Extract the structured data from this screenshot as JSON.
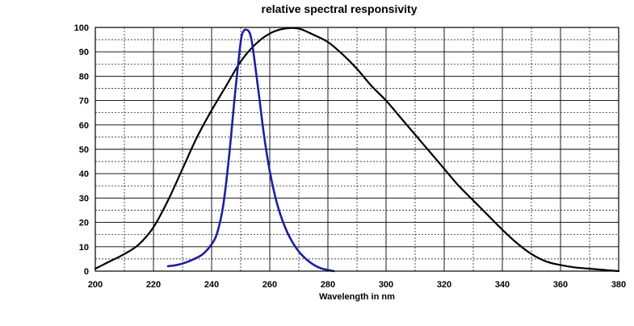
{
  "chart_data": {
    "type": "line",
    "title": "relative spectral responsivity",
    "xlabel": "Wavelength in nm",
    "ylabel": "",
    "xlim": [
      200,
      380
    ],
    "ylim": [
      0,
      100
    ],
    "x_ticks": [
      200,
      220,
      240,
      260,
      280,
      300,
      320,
      340,
      360,
      380
    ],
    "y_ticks": [
      0,
      10,
      20,
      30,
      40,
      50,
      60,
      70,
      80,
      90,
      100
    ],
    "grid": true,
    "grid_minor_x_step": 10,
    "grid_minor_y_step": 5,
    "series": [
      {
        "color": "#000000",
        "points": [
          [
            200,
            1
          ],
          [
            205,
            4
          ],
          [
            210,
            7
          ],
          [
            215,
            11
          ],
          [
            220,
            18
          ],
          [
            225,
            29
          ],
          [
            230,
            42
          ],
          [
            235,
            55
          ],
          [
            240,
            66
          ],
          [
            245,
            76
          ],
          [
            250,
            86
          ],
          [
            255,
            93
          ],
          [
            260,
            97.5
          ],
          [
            265,
            99.5
          ],
          [
            270,
            99.5
          ],
          [
            275,
            97
          ],
          [
            280,
            94
          ],
          [
            285,
            89
          ],
          [
            290,
            83
          ],
          [
            295,
            76
          ],
          [
            300,
            70
          ],
          [
            305,
            63
          ],
          [
            310,
            56
          ],
          [
            315,
            49
          ],
          [
            320,
            42
          ],
          [
            325,
            35
          ],
          [
            330,
            29
          ],
          [
            335,
            23
          ],
          [
            340,
            17
          ],
          [
            345,
            11.5
          ],
          [
            350,
            7
          ],
          [
            355,
            4
          ],
          [
            360,
            2.5
          ],
          [
            365,
            1.5
          ],
          [
            370,
            1
          ],
          [
            375,
            0.5
          ],
          [
            380,
            0
          ]
        ]
      },
      {
        "color": "#1f1f9e",
        "points": [
          [
            225,
            2
          ],
          [
            228,
            2.5
          ],
          [
            231,
            3.5
          ],
          [
            234,
            5
          ],
          [
            237,
            7
          ],
          [
            240,
            11
          ],
          [
            242,
            16
          ],
          [
            244,
            27
          ],
          [
            246,
            47
          ],
          [
            248,
            72
          ],
          [
            250,
            94
          ],
          [
            251,
            98.5
          ],
          [
            252,
            99
          ],
          [
            253,
            98
          ],
          [
            254,
            93
          ],
          [
            256,
            75
          ],
          [
            258,
            56
          ],
          [
            260,
            41
          ],
          [
            262,
            30
          ],
          [
            264,
            22
          ],
          [
            266,
            16
          ],
          [
            268,
            11.5
          ],
          [
            270,
            8
          ],
          [
            272,
            5.5
          ],
          [
            274,
            3.5
          ],
          [
            276,
            2
          ],
          [
            278,
            1
          ],
          [
            280,
            0.5
          ],
          [
            282,
            0
          ]
        ]
      }
    ]
  }
}
